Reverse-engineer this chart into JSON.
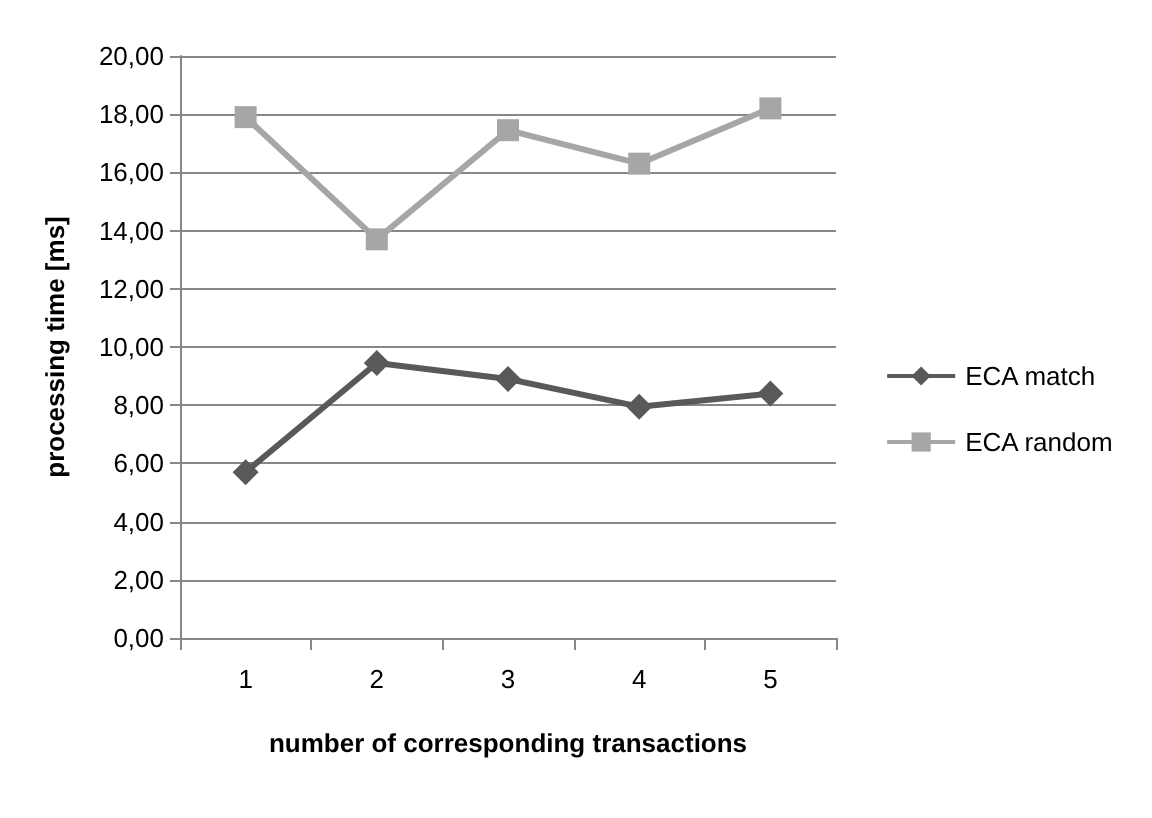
{
  "chart_data": {
    "type": "line",
    "xlabel": "number of corresponding transactions",
    "ylabel": "processing time [ms]",
    "categories": [
      "1",
      "2",
      "3",
      "4",
      "5"
    ],
    "series": [
      {
        "name": "ECA match",
        "color": "#595959",
        "marker": "diamond",
        "values": [
          5.7,
          9.45,
          8.9,
          7.95,
          8.4
        ]
      },
      {
        "name": "ECA random",
        "color": "#a6a6a6",
        "marker": "square",
        "values": [
          17.9,
          13.7,
          17.45,
          16.3,
          18.2
        ]
      }
    ],
    "ylim": [
      0,
      20
    ],
    "yticks": [
      {
        "value": 0,
        "label": "0,00"
      },
      {
        "value": 2,
        "label": "2,00"
      },
      {
        "value": 4,
        "label": "4,00"
      },
      {
        "value": 6,
        "label": "6,00"
      },
      {
        "value": 8,
        "label": "8,00"
      },
      {
        "value": 10,
        "label": "10,00"
      },
      {
        "value": 12,
        "label": "12,00"
      },
      {
        "value": 14,
        "label": "14,00"
      },
      {
        "value": 16,
        "label": "16,00"
      },
      {
        "value": 18,
        "label": "18,00"
      },
      {
        "value": 20,
        "label": "20,00"
      }
    ],
    "grid": "y",
    "legend": "right"
  }
}
